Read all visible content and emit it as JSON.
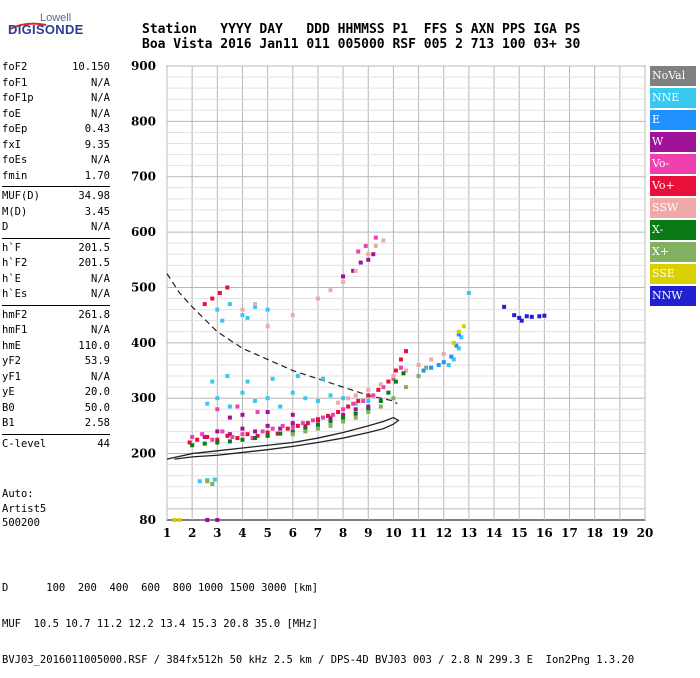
{
  "logo": {
    "top": "Lowell",
    "main": "DIGISONDE"
  },
  "header": {
    "line1": "Station   YYYY DAY   DDD HHMMSS P1  FFS S AXN PPS IGA PS",
    "line2": "Boa Vista 2016 Jan11 011 005000 RSF 005 2 713 100 03+ 30"
  },
  "params": [
    [
      {
        "k": "foF2",
        "v": "10.150"
      },
      {
        "k": "foF1",
        "v": "N/A"
      },
      {
        "k": "foF1p",
        "v": "N/A"
      },
      {
        "k": "foE",
        "v": "N/A"
      },
      {
        "k": "foEp",
        "v": "0.43"
      },
      {
        "k": "fxI",
        "v": "9.35"
      },
      {
        "k": "foEs",
        "v": "N/A"
      },
      {
        "k": "fmin",
        "v": "1.70"
      }
    ],
    [
      {
        "k": "MUF(D)",
        "v": "34.98"
      },
      {
        "k": "M(D)",
        "v": "3.45"
      },
      {
        "k": "D",
        "v": "N/A"
      }
    ],
    [
      {
        "k": "h`F",
        "v": "201.5"
      },
      {
        "k": "h`F2",
        "v": "201.5"
      },
      {
        "k": "h`E",
        "v": "N/A"
      },
      {
        "k": "h`Es",
        "v": "N/A"
      }
    ],
    [
      {
        "k": "hmF2",
        "v": "261.8"
      },
      {
        "k": "hmF1",
        "v": "N/A"
      },
      {
        "k": "hmE",
        "v": "110.0"
      },
      {
        "k": "yF2",
        "v": "53.9"
      },
      {
        "k": "yF1",
        "v": "N/A"
      },
      {
        "k": "yE",
        "v": "20.0"
      },
      {
        "k": "B0",
        "v": "50.0"
      },
      {
        "k": "B1",
        "v": "2.58"
      }
    ],
    [
      {
        "k": "C-level",
        "v": "44"
      }
    ]
  ],
  "auto": {
    "line1": "Auto:",
    "line2": "Artist5",
    "line3": "500200"
  },
  "legend": [
    {
      "label": "NoVal",
      "color": "#808080"
    },
    {
      "label": "NNE",
      "color": "#38c8f0"
    },
    {
      "label": "E",
      "color": "#1e90ff"
    },
    {
      "label": "W",
      "color": "#a0119a"
    },
    {
      "label": "Vo-",
      "color": "#f040b0"
    },
    {
      "label": "Vo+",
      "color": "#e8103a"
    },
    {
      "label": "SSW",
      "color": "#f0a8a8"
    },
    {
      "label": "X-",
      "color": "#0a7a14"
    },
    {
      "label": "X+",
      "color": "#80b060"
    },
    {
      "label": "SSE",
      "color": "#d8d000"
    },
    {
      "label": "NNW",
      "color": "#2020d0"
    }
  ],
  "footer": {
    "line1": "D      100  200  400  600  800 1000 1500 3000 [km]",
    "line2": "MUF  10.5 10.7 11.2 12.2 13.4 15.3 20.8 35.0 [MHz]",
    "line3": "BVJ03_2016011005000.RSF / 384fx512h 50 kHz 2.5 km / DPS-4D BVJ03 003 / 2.8 N 299.3 E  Ion2Png 1.3.20"
  },
  "chart_data": {
    "type": "scatter",
    "xlim": [
      1,
      20
    ],
    "ylim": [
      80,
      900
    ],
    "x_ticks": [
      1,
      2,
      3,
      4,
      5,
      6,
      7,
      8,
      9,
      10,
      11,
      12,
      13,
      14,
      15,
      16,
      17,
      18,
      19,
      20
    ],
    "y_ticks": [
      80,
      200,
      300,
      400,
      500,
      600,
      700,
      800,
      900
    ],
    "grid": true,
    "legend_position": "right",
    "series": [
      {
        "name": "NNE",
        "color": "#38c8f0",
        "points": [
          [
            2.6,
            290
          ],
          [
            3.0,
            300
          ],
          [
            3.5,
            285
          ],
          [
            4.0,
            310
          ],
          [
            4.5,
            295
          ],
          [
            5.0,
            300
          ],
          [
            5.5,
            285
          ],
          [
            6.0,
            310
          ],
          [
            6.5,
            300
          ],
          [
            7.0,
            295
          ],
          [
            7.5,
            305
          ],
          [
            8.0,
            300
          ],
          [
            8.5,
            290
          ],
          [
            9.0,
            295
          ],
          [
            2.8,
            330
          ],
          [
            3.4,
            340
          ],
          [
            4.2,
            330
          ],
          [
            5.2,
            335
          ],
          [
            6.2,
            340
          ],
          [
            7.2,
            335
          ],
          [
            3.0,
            460
          ],
          [
            3.5,
            470
          ],
          [
            4.0,
            450
          ],
          [
            4.5,
            465
          ],
          [
            5.0,
            460
          ],
          [
            3.2,
            440
          ],
          [
            4.2,
            445
          ],
          [
            2.3,
            150
          ],
          [
            2.6,
            152
          ],
          [
            2.9,
            153
          ],
          [
            12.2,
            360
          ],
          [
            12.4,
            370
          ],
          [
            12.6,
            390
          ],
          [
            12.7,
            410
          ],
          [
            13.0,
            490
          ]
        ]
      },
      {
        "name": "E",
        "color": "#1e90ff",
        "points": [
          [
            11.2,
            350
          ],
          [
            11.5,
            355
          ],
          [
            11.8,
            360
          ],
          [
            12.0,
            365
          ],
          [
            12.3,
            375
          ],
          [
            12.5,
            395
          ],
          [
            12.6,
            415
          ]
        ]
      },
      {
        "name": "W",
        "color": "#a0119a",
        "points": [
          [
            2.5,
            230
          ],
          [
            3.0,
            240
          ],
          [
            3.5,
            235
          ],
          [
            4.0,
            245
          ],
          [
            4.5,
            240
          ],
          [
            5.0,
            250
          ],
          [
            5.5,
            245
          ],
          [
            6.0,
            255
          ],
          [
            6.5,
            250
          ],
          [
            7.0,
            260
          ],
          [
            7.5,
            265
          ],
          [
            8.0,
            270
          ],
          [
            8.5,
            280
          ],
          [
            9.0,
            285
          ],
          [
            4.0,
            270
          ],
          [
            5.0,
            275
          ],
          [
            6.0,
            270
          ],
          [
            3.5,
            265
          ],
          [
            8.0,
            520
          ],
          [
            8.4,
            530
          ],
          [
            8.7,
            545
          ],
          [
            9.0,
            550
          ],
          [
            9.2,
            560
          ],
          [
            2.6,
            80
          ],
          [
            3.0,
            80
          ]
        ]
      },
      {
        "name": "Vo-",
        "color": "#f040b0",
        "points": [
          [
            2.0,
            230
          ],
          [
            2.4,
            235
          ],
          [
            2.8,
            225
          ],
          [
            3.2,
            240
          ],
          [
            3.6,
            230
          ],
          [
            4.0,
            235
          ],
          [
            4.4,
            228
          ],
          [
            4.8,
            240
          ],
          [
            5.2,
            245
          ],
          [
            5.6,
            250
          ],
          [
            6.0,
            248
          ],
          [
            6.4,
            255
          ],
          [
            6.8,
            260
          ],
          [
            7.2,
            265
          ],
          [
            7.6,
            270
          ],
          [
            8.0,
            280
          ],
          [
            8.4,
            290
          ],
          [
            8.8,
            295
          ],
          [
            9.2,
            305
          ],
          [
            9.6,
            320
          ],
          [
            10.0,
            335
          ],
          [
            10.3,
            355
          ],
          [
            3.0,
            280
          ],
          [
            3.8,
            285
          ],
          [
            4.6,
            275
          ],
          [
            8.6,
            565
          ],
          [
            8.9,
            575
          ],
          [
            9.3,
            590
          ]
        ]
      },
      {
        "name": "Vo+",
        "color": "#e8103a",
        "points": [
          [
            1.9,
            220
          ],
          [
            2.2,
            225
          ],
          [
            2.6,
            230
          ],
          [
            3.0,
            225
          ],
          [
            3.4,
            232
          ],
          [
            3.8,
            228
          ],
          [
            4.2,
            235
          ],
          [
            4.6,
            232
          ],
          [
            5.0,
            238
          ],
          [
            5.4,
            236
          ],
          [
            5.8,
            245
          ],
          [
            6.2,
            250
          ],
          [
            6.6,
            255
          ],
          [
            7.0,
            262
          ],
          [
            7.4,
            268
          ],
          [
            7.8,
            275
          ],
          [
            8.2,
            285
          ],
          [
            8.6,
            295
          ],
          [
            9.0,
            305
          ],
          [
            9.4,
            315
          ],
          [
            9.8,
            330
          ],
          [
            10.1,
            350
          ],
          [
            10.3,
            370
          ],
          [
            10.5,
            385
          ],
          [
            2.5,
            470
          ],
          [
            2.8,
            480
          ],
          [
            3.1,
            490
          ],
          [
            3.4,
            500
          ]
        ]
      },
      {
        "name": "SSW",
        "color": "#f0a8a8",
        "points": [
          [
            8.5,
            305
          ],
          [
            9.0,
            315
          ],
          [
            9.5,
            325
          ],
          [
            10.0,
            340
          ],
          [
            10.5,
            350
          ],
          [
            11.0,
            360
          ],
          [
            11.5,
            370
          ],
          [
            12.0,
            380
          ],
          [
            8.2,
            300
          ],
          [
            7.8,
            292
          ],
          [
            5.0,
            430
          ],
          [
            6.0,
            450
          ],
          [
            7.0,
            480
          ],
          [
            7.5,
            495
          ],
          [
            8.0,
            510
          ],
          [
            8.5,
            530
          ],
          [
            9.0,
            560
          ],
          [
            9.3,
            575
          ],
          [
            9.6,
            585
          ],
          [
            4.0,
            460
          ],
          [
            4.5,
            470
          ]
        ]
      },
      {
        "name": "X-",
        "color": "#0a7a14",
        "points": [
          [
            2.0,
            215
          ],
          [
            2.5,
            218
          ],
          [
            3.0,
            220
          ],
          [
            3.5,
            222
          ],
          [
            4.0,
            225
          ],
          [
            4.5,
            228
          ],
          [
            5.0,
            232
          ],
          [
            5.5,
            236
          ],
          [
            6.0,
            240
          ],
          [
            6.5,
            245
          ],
          [
            7.0,
            252
          ],
          [
            7.5,
            258
          ],
          [
            8.0,
            265
          ],
          [
            8.5,
            272
          ],
          [
            9.0,
            280
          ],
          [
            9.5,
            295
          ],
          [
            9.8,
            310
          ],
          [
            10.1,
            330
          ],
          [
            10.4,
            345
          ]
        ]
      },
      {
        "name": "X+",
        "color": "#80b060",
        "points": [
          [
            6.0,
            235
          ],
          [
            6.5,
            240
          ],
          [
            7.0,
            245
          ],
          [
            7.5,
            250
          ],
          [
            8.0,
            258
          ],
          [
            8.5,
            265
          ],
          [
            9.0,
            275
          ],
          [
            9.5,
            285
          ],
          [
            10.0,
            300
          ],
          [
            10.5,
            320
          ],
          [
            11.0,
            340
          ],
          [
            11.3,
            355
          ],
          [
            2.6,
            150
          ],
          [
            2.8,
            145
          ]
        ]
      },
      {
        "name": "SSE",
        "color": "#d8d000",
        "points": [
          [
            1.3,
            80
          ],
          [
            1.5,
            80
          ],
          [
            12.4,
            400
          ],
          [
            12.6,
            420
          ],
          [
            12.8,
            430
          ]
        ]
      },
      {
        "name": "NNW",
        "color": "#2020d0",
        "points": [
          [
            14.4,
            465
          ],
          [
            14.8,
            450
          ],
          [
            15.0,
            445
          ],
          [
            15.1,
            440
          ],
          [
            15.3,
            448
          ],
          [
            15.5,
            447
          ],
          [
            15.8,
            448
          ],
          [
            16.0,
            449
          ]
        ]
      }
    ],
    "profile_curve": [
      [
        1,
        190
      ],
      [
        2,
        200
      ],
      [
        3,
        205
      ],
      [
        4,
        210
      ],
      [
        5,
        215
      ],
      [
        6,
        220
      ],
      [
        7,
        228
      ],
      [
        8,
        238
      ],
      [
        9,
        250
      ],
      [
        9.6,
        258
      ],
      [
        10.0,
        265
      ],
      [
        10.2,
        260
      ],
      [
        10.0,
        253
      ],
      [
        9.6,
        245
      ],
      [
        9,
        238
      ],
      [
        8,
        228
      ],
      [
        7,
        220
      ],
      [
        6,
        213
      ],
      [
        5,
        207
      ],
      [
        4,
        202
      ],
      [
        3,
        197
      ],
      [
        2,
        194
      ],
      [
        1.3,
        190
      ]
    ],
    "muf_curve_dashed": [
      [
        1,
        525
      ],
      [
        1.5,
        490
      ],
      [
        2,
        465
      ],
      [
        3,
        420
      ],
      [
        4,
        390
      ],
      [
        5,
        370
      ],
      [
        6,
        350
      ],
      [
        7,
        335
      ],
      [
        8,
        320
      ],
      [
        9,
        305
      ],
      [
        10,
        295
      ],
      [
        10.15,
        290
      ]
    ]
  }
}
